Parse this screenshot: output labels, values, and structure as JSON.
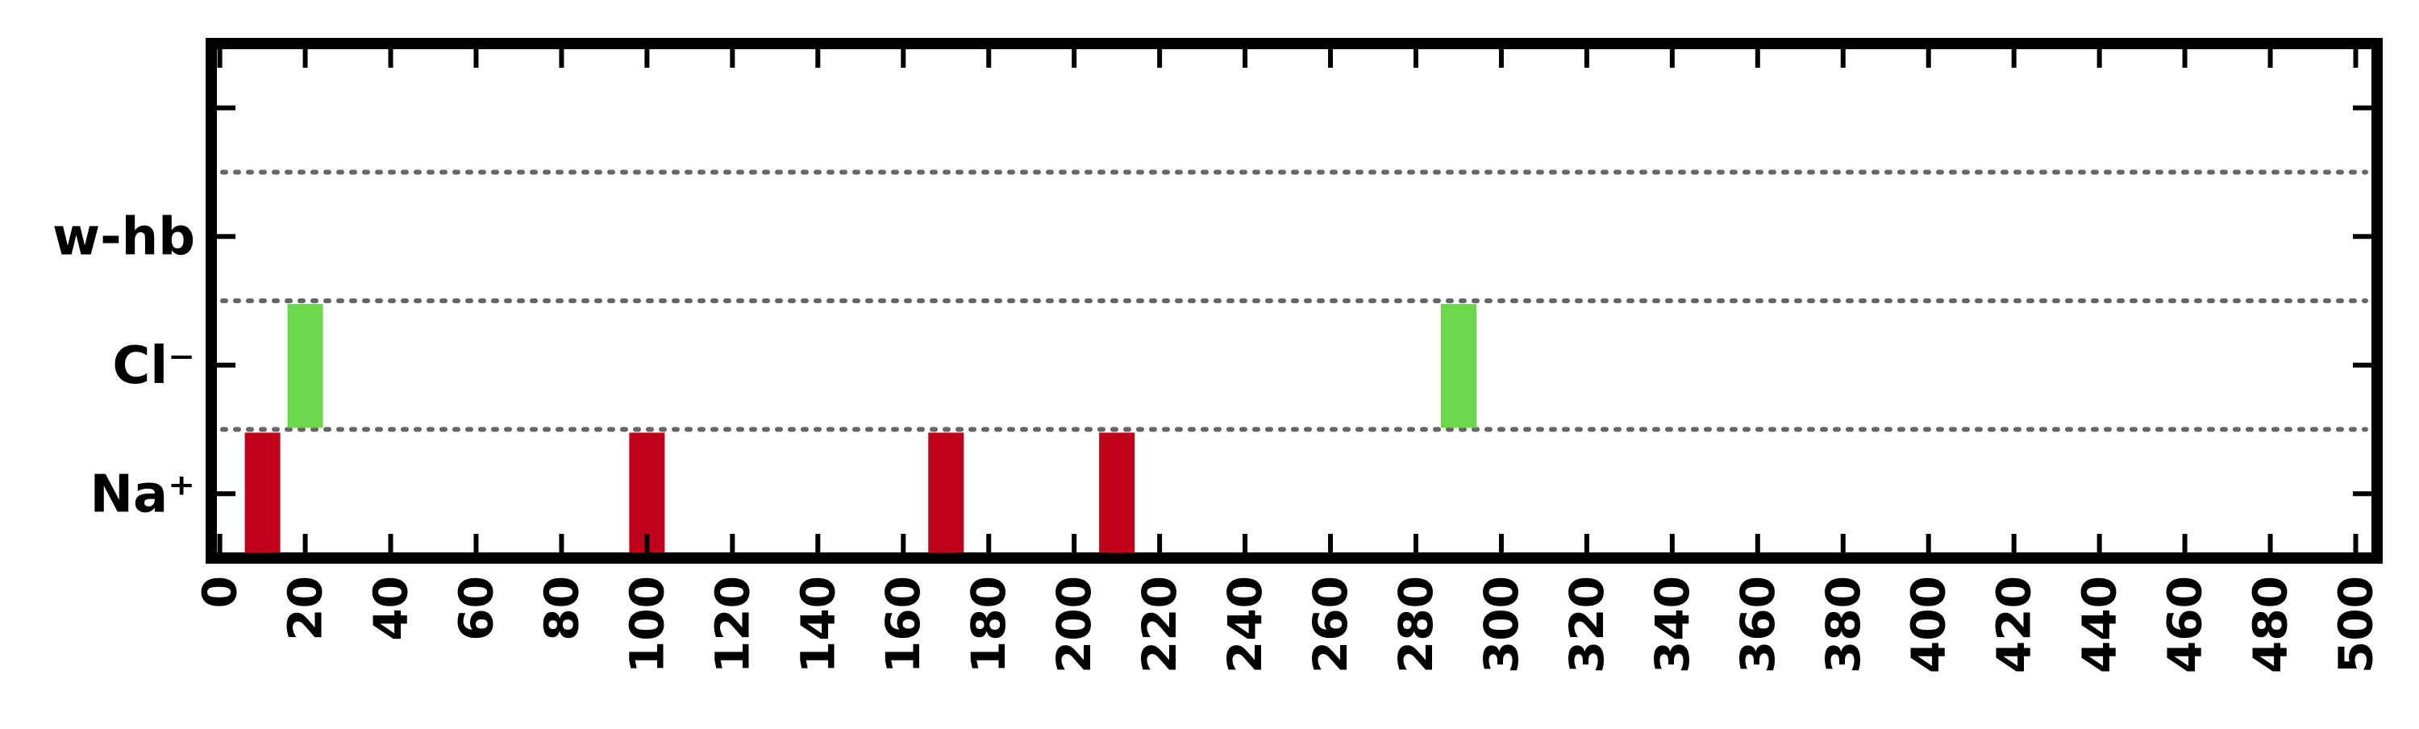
{
  "chart_data": {
    "type": "bar",
    "title": "",
    "xlabel": "",
    "ylabel": "",
    "xlim": [
      -2,
      505
    ],
    "xticks": [
      0,
      20,
      40,
      60,
      80,
      100,
      120,
      140,
      160,
      180,
      200,
      220,
      240,
      260,
      280,
      300,
      320,
      340,
      360,
      380,
      400,
      420,
      440,
      460,
      480,
      500
    ],
    "x_tick_labels": [
      "0",
      "20",
      "40",
      "60",
      "80",
      "100",
      "120",
      "140",
      "160",
      "180",
      "200",
      "220",
      "240",
      "260",
      "280",
      "300",
      "320",
      "340",
      "360",
      "380",
      "400",
      "420",
      "440",
      "460",
      "480",
      "500"
    ],
    "categories": [
      "Na⁺",
      "Cl⁻",
      "w-hb",
      ""
    ],
    "y_tick_labels": [
      "Na⁺",
      "Cl⁻",
      "w-hb",
      ""
    ],
    "grid": "horizontal dotted between rows",
    "events": [
      {
        "row": "Na⁺",
        "x": 10,
        "color": "#c0021a"
      },
      {
        "row": "Na⁺",
        "x": 100,
        "color": "#c0021a"
      },
      {
        "row": "Na⁺",
        "x": 170,
        "color": "#c0021a"
      },
      {
        "row": "Na⁺",
        "x": 210,
        "color": "#c0021a"
      },
      {
        "row": "Cl⁻",
        "x": 20,
        "color": "#6ad84a"
      },
      {
        "row": "Cl⁻",
        "x": 290,
        "color": "#6ad84a"
      }
    ]
  }
}
